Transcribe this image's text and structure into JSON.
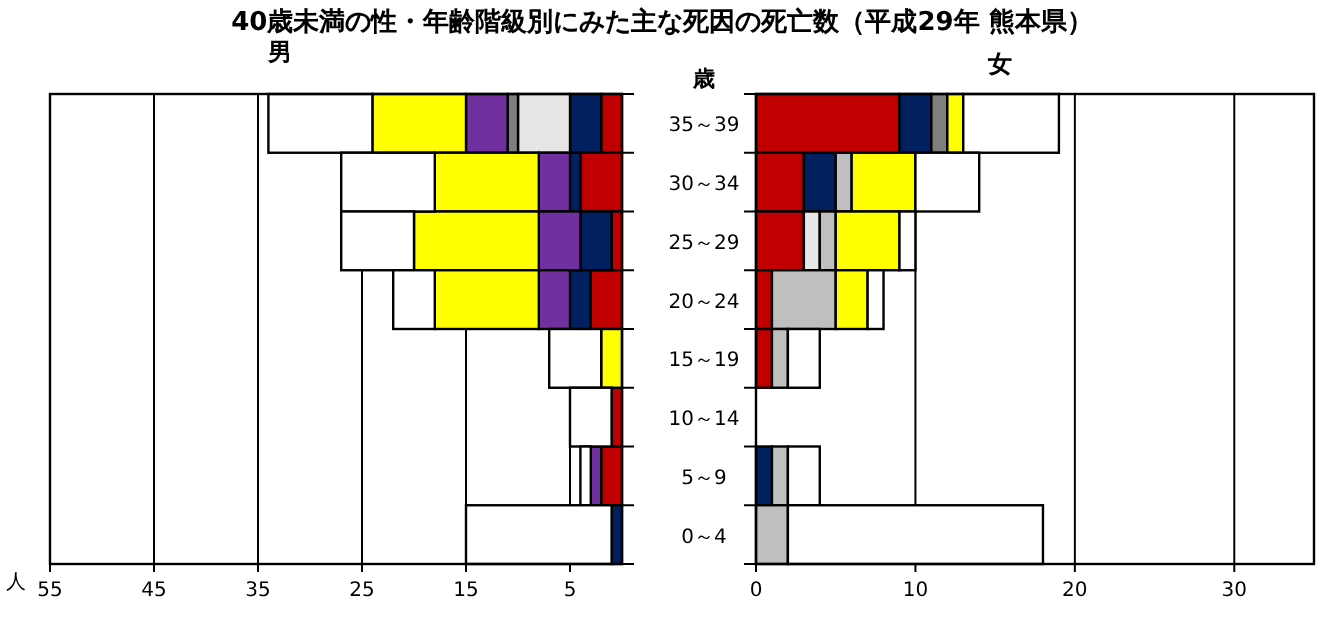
{
  "chart_data": [
    {
      "type": "bar",
      "orientation": "horizontal",
      "stacked": true,
      "title": "40歳未満の性・年齢階級別にみた主な死因の死亡数（平成29年 熊本県）",
      "subtitle": "男",
      "xlabel": "人",
      "categories": [
        null,
        null,
        null,
        null,
        null,
        null,
        null,
        null
      ],
      "xlim": [
        55,
        0
      ],
      "xticks": [
        55,
        45,
        35,
        25,
        15,
        5
      ],
      "grid": "x",
      "tick_labels": "x",
      "series": [
        {
          "color": "#c00000",
          "values": [
            2,
            4,
            1,
            3,
            0,
            1,
            2,
            0
          ]
        },
        {
          "color": "#002060",
          "values": [
            3,
            1,
            3,
            2,
            0,
            0,
            0,
            1
          ]
        },
        {
          "color": "#e6e6e6",
          "values": [
            5,
            0,
            0,
            0,
            0,
            0,
            0,
            0
          ]
        },
        {
          "color": "#7f7f7f",
          "values": [
            1,
            0,
            0,
            0,
            0,
            0,
            0,
            0
          ]
        },
        {
          "color": "#7030a0",
          "values": [
            4,
            3,
            4,
            3,
            0,
            0,
            1,
            0
          ]
        },
        {
          "color": "#ffff00",
          "values": [
            9,
            10,
            12,
            10,
            2,
            0,
            0,
            0
          ]
        },
        {
          "color": "#ffffff",
          "values": [
            10,
            9,
            7,
            4,
            5,
            4,
            1,
            14
          ]
        }
      ]
    },
    {
      "type": "bar",
      "orientation": "horizontal",
      "stacked": true,
      "title": "女",
      "ylabel": "歳",
      "categories": [
        "35～39",
        "30～34",
        "25～29",
        "20～24",
        "15～19",
        "10～14",
        "5～9",
        "0～4"
      ],
      "xlim": [
        0,
        35
      ],
      "xticks": [
        0,
        10,
        20,
        30
      ],
      "grid": "x",
      "series": [
        {
          "color": "#c00000",
          "values": [
            9,
            3,
            3,
            1,
            1,
            0,
            0,
            0
          ]
        },
        {
          "color": "#002060",
          "values": [
            2,
            2,
            0,
            0,
            0,
            0,
            1,
            0
          ]
        },
        {
          "color": "#e6e6e6",
          "values": [
            0,
            0,
            1,
            0,
            0,
            0,
            0,
            0
          ]
        },
        {
          "color": "#bfbfbf",
          "values": [
            0,
            1,
            1,
            4,
            1,
            0,
            1,
            2
          ]
        },
        {
          "color": "#7f7f7f",
          "values": [
            1,
            0,
            0,
            0,
            0,
            0,
            0,
            0
          ]
        },
        {
          "color": "#ffff00",
          "values": [
            1,
            4,
            4,
            2,
            0,
            0,
            0,
            0
          ]
        },
        {
          "color": "#ffffff",
          "values": [
            6,
            4,
            1,
            1,
            2,
            0,
            2,
            16
          ]
        }
      ]
    }
  ]
}
